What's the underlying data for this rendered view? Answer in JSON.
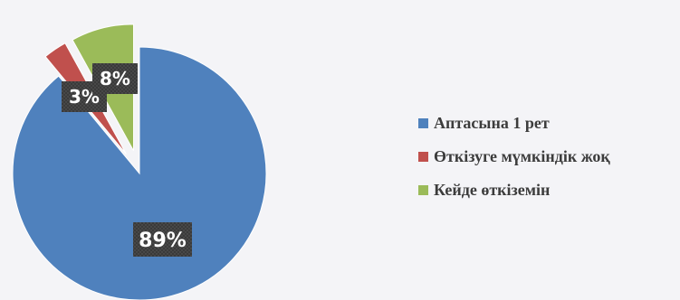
{
  "chart_data": {
    "type": "pie",
    "categories": [
      "Аптасына  1 рет",
      "Өткізуге  мүмкіндік жоқ",
      "Кейде өткіземін"
    ],
    "values": [
      89,
      3,
      8
    ],
    "data_labels": [
      "89%",
      "3%",
      "8%"
    ],
    "colors": [
      "#4f81bd",
      "#c0504d",
      "#9bbb59"
    ],
    "exploded": [
      false,
      true,
      true
    ],
    "legend_position": "right"
  }
}
